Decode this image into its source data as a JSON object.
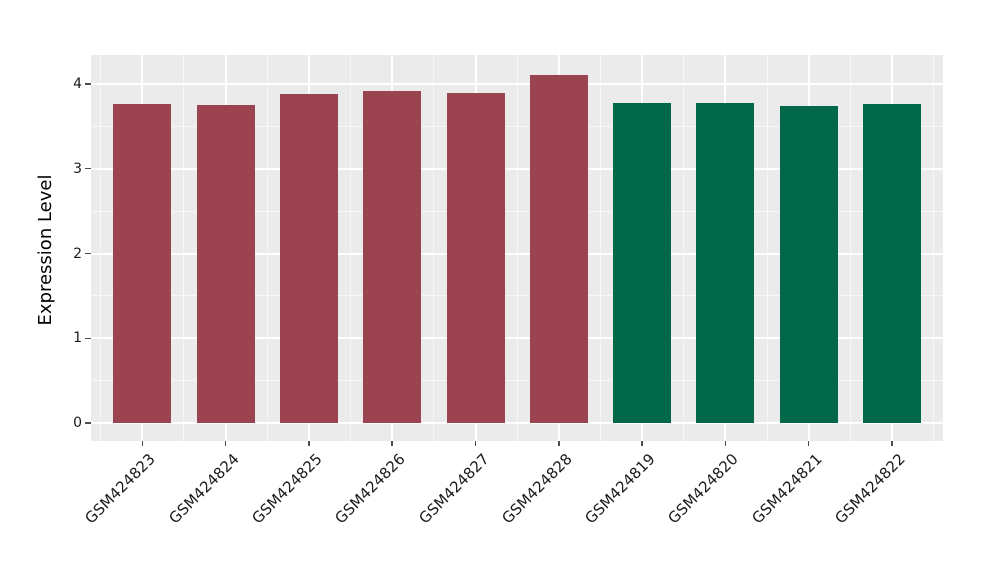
{
  "chart_data": {
    "type": "bar",
    "title": "",
    "xlabel": "",
    "ylabel": "Expression Level",
    "categories": [
      "GSM424823",
      "GSM424824",
      "GSM424825",
      "GSM424826",
      "GSM424827",
      "GSM424828",
      "GSM424819",
      "GSM424820",
      "GSM424821",
      "GSM424822"
    ],
    "values": [
      3.76,
      3.75,
      3.88,
      3.92,
      3.89,
      4.11,
      3.77,
      3.77,
      3.74,
      3.76
    ],
    "bar_colors": [
      "#9B4351",
      "#9B4351",
      "#9B4351",
      "#9B4351",
      "#9B4351",
      "#9B4351",
      "#02684A",
      "#02684A",
      "#02684A",
      "#02684A"
    ],
    "y_tick_labels": [
      "0",
      "1",
      "2",
      "3",
      "4"
    ],
    "y_tick_values": [
      0,
      1,
      2,
      3,
      4
    ],
    "y_minor_values": [
      0.5,
      1.5,
      2.5,
      3.5
    ],
    "ylim": [
      -0.21,
      4.34
    ],
    "grid": true,
    "legend_position": "none"
  },
  "style": {
    "panel_background": "#EBEBEB",
    "grid_major_color": "#FFFFFF",
    "grid_minor_color": "#FFFFFF",
    "group_colors": {
      "left_group": "#9B4351",
      "right_group": "#02684A"
    },
    "text_color": "#1a1a1a",
    "tick_mark_color": "#4d4d4d"
  }
}
